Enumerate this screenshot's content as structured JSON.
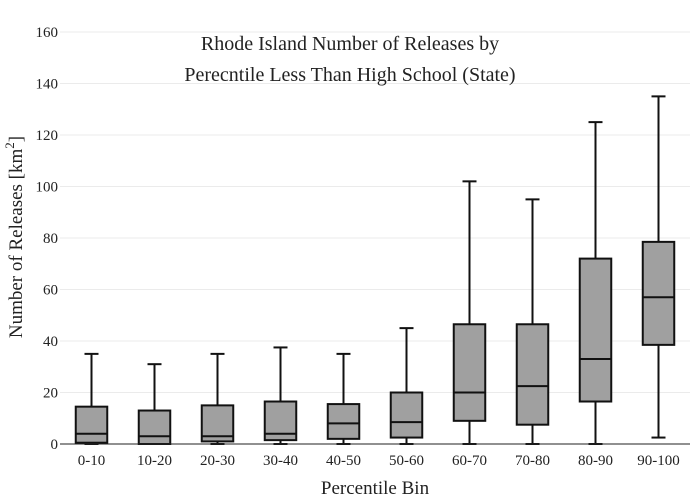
{
  "chart_data": {
    "type": "box",
    "title_lines": [
      "Rhode Island Number of Releases by",
      "Perecntile Less Than High School (State)"
    ],
    "xlabel": "Percentile Bin",
    "ylabel_main": "Number of Releases  [km",
    "ylabel_sup": "2",
    "ylabel_end": "]",
    "ylim": [
      0,
      160
    ],
    "yticks": [
      0,
      20,
      40,
      60,
      80,
      100,
      120,
      140,
      160
    ],
    "grid": true,
    "box_fill": "#a0a0a0",
    "box_stroke": "#111111",
    "grid_color": "#ebebeb",
    "categories": [
      "0-10",
      "10-20",
      "20-30",
      "30-40",
      "40-50",
      "50-60",
      "60-70",
      "70-80",
      "80-90",
      "90-100"
    ],
    "boxes": [
      {
        "min": 0,
        "q1": 0.5,
        "median": 4,
        "q3": 14.5,
        "max": 35
      },
      {
        "min": 0,
        "q1": 0,
        "median": 3,
        "q3": 13,
        "max": 31
      },
      {
        "min": 0,
        "q1": 1,
        "median": 3,
        "q3": 15,
        "max": 35
      },
      {
        "min": 0,
        "q1": 1.5,
        "median": 4,
        "q3": 16.5,
        "max": 37.5
      },
      {
        "min": 0,
        "q1": 2,
        "median": 8,
        "q3": 15.5,
        "max": 35
      },
      {
        "min": 0,
        "q1": 2.5,
        "median": 8.5,
        "q3": 20,
        "max": 45
      },
      {
        "min": 0,
        "q1": 9,
        "median": 20,
        "q3": 46.5,
        "max": 102
      },
      {
        "min": 0,
        "q1": 7.5,
        "median": 22.5,
        "q3": 46.5,
        "max": 95
      },
      {
        "min": 0,
        "q1": 16.5,
        "median": 33,
        "q3": 72,
        "max": 125
      },
      {
        "min": 2.5,
        "q1": 38.5,
        "median": 57,
        "q3": 78.5,
        "max": 135
      }
    ]
  }
}
